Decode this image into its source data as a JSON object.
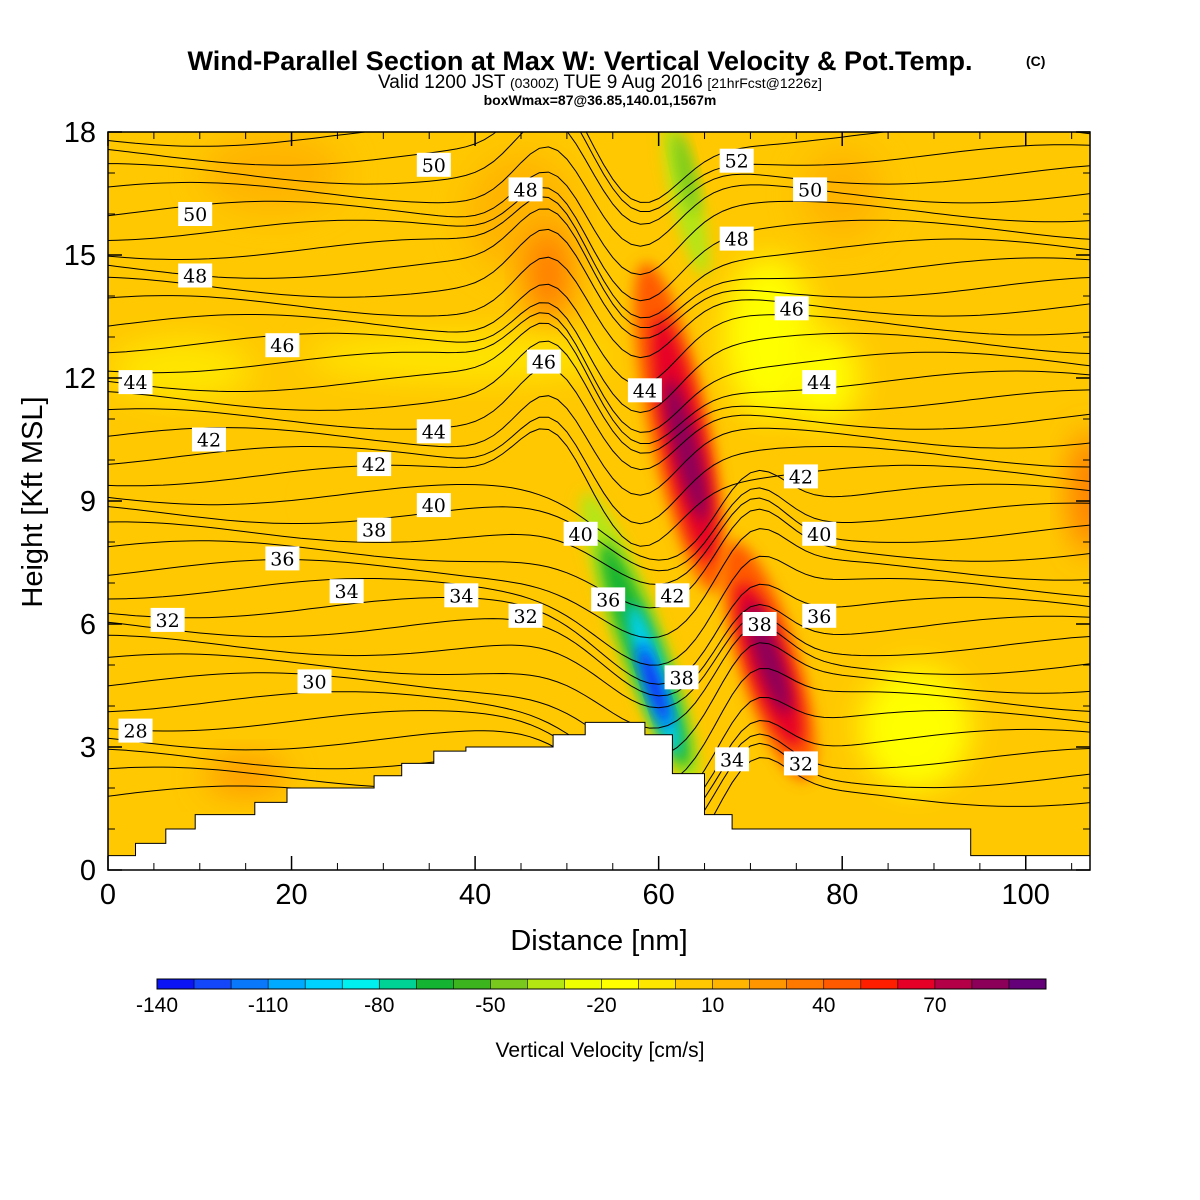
{
  "title": {
    "main": "Wind-Parallel Section at Max W: Vertical Velocity & Pot.Temp.",
    "copyright": "(C)",
    "valid_prefix": "Valid 1200 JST",
    "valid_utc": "(0300Z)",
    "valid_date": "TUE 9 Aug 2016",
    "forecast": "[21hrFcst@1226z]",
    "box_info": "boxWmax=87@36.85,140.01,1567m"
  },
  "chart_data": {
    "type": "contour",
    "xlabel": "Distance [nm]",
    "ylabel": "Height [Kft MSL]",
    "xlim": [
      0,
      107
    ],
    "ylim": [
      0,
      18
    ],
    "x_ticks": [
      "0",
      "20",
      "40",
      "60",
      "80",
      "100"
    ],
    "x_tick_values": [
      0,
      20,
      40,
      60,
      80,
      100
    ],
    "y_ticks": [
      "0",
      "3",
      "6",
      "9",
      "12",
      "15",
      "18"
    ],
    "y_tick_values": [
      0,
      3,
      6,
      9,
      12,
      15,
      18
    ],
    "terrain": [
      [
        0,
        0.35
      ],
      [
        3,
        0.35
      ],
      [
        3,
        0.65
      ],
      [
        6.3,
        0.65
      ],
      [
        6.3,
        1.0
      ],
      [
        9.5,
        1.0
      ],
      [
        9.5,
        1.35
      ],
      [
        16,
        1.35
      ],
      [
        16,
        1.65
      ],
      [
        19.5,
        1.65
      ],
      [
        19.5,
        2.0
      ],
      [
        29,
        2.0
      ],
      [
        29,
        2.3
      ],
      [
        32,
        2.3
      ],
      [
        32,
        2.6
      ],
      [
        35.5,
        2.6
      ],
      [
        35.5,
        2.9
      ],
      [
        39,
        2.9
      ],
      [
        39,
        3.0
      ],
      [
        48.5,
        3.0
      ],
      [
        48.5,
        3.3
      ],
      [
        52,
        3.3
      ],
      [
        52,
        3.6
      ],
      [
        58.5,
        3.6
      ],
      [
        58.5,
        3.3
      ],
      [
        61.5,
        3.3
      ],
      [
        61.5,
        2.35
      ],
      [
        65,
        2.35
      ],
      [
        65,
        1.35
      ],
      [
        68,
        1.35
      ],
      [
        68,
        1.0
      ],
      [
        94,
        1.0
      ],
      [
        94,
        0.35
      ],
      [
        107,
        0.35
      ]
    ],
    "colorbar": {
      "title": "Vertical Velocity [cm/s]",
      "tick_labels": [
        "-140",
        "-110",
        "-80",
        "-50",
        "-20",
        "10",
        "40",
        "70"
      ],
      "tick_values": [
        -140,
        -110,
        -80,
        -50,
        -20,
        10,
        40,
        70
      ],
      "levels": [
        -140,
        -130,
        -120,
        -110,
        -100,
        -90,
        -80,
        -70,
        -60,
        -50,
        -40,
        -30,
        -20,
        -10,
        0,
        10,
        20,
        30,
        40,
        50,
        60,
        70,
        80,
        90
      ],
      "colors": [
        "#0a14f5",
        "#1446fa",
        "#0a78fa",
        "#00aaff",
        "#00d2ff",
        "#00f0f0",
        "#00d296",
        "#14b432",
        "#3cb41e",
        "#78c81e",
        "#b4e614",
        "#f0ff00",
        "#ffff00",
        "#ffe600",
        "#ffc800",
        "#ffb400",
        "#ff9600",
        "#ff7800",
        "#ff5a00",
        "#ff1e00",
        "#e60028",
        "#b40046",
        "#8c005a",
        "#640078"
      ]
    },
    "vv_features": [
      {
        "x": 64,
        "y": 10.5,
        "value": 85
      },
      {
        "x": 72,
        "y": 5.0,
        "value": 80
      },
      {
        "x": 74,
        "y": 3.0,
        "value": 60
      },
      {
        "x": 59,
        "y": 5.0,
        "value": -140
      },
      {
        "x": 62,
        "y": 3.5,
        "value": -110
      },
      {
        "x": 63,
        "y": 16.5,
        "value": -40
      },
      {
        "x": 72,
        "y": 12.5,
        "value": -25
      }
    ],
    "contour_labels": [
      {
        "text": "50",
        "x": 35.5,
        "y": 17.2
      },
      {
        "text": "52",
        "x": 68.5,
        "y": 17.3
      },
      {
        "text": "48",
        "x": 45.5,
        "y": 16.6
      },
      {
        "text": "50",
        "x": 76.5,
        "y": 16.6
      },
      {
        "text": "50",
        "x": 9.5,
        "y": 16.0
      },
      {
        "text": "48",
        "x": 68.5,
        "y": 15.4
      },
      {
        "text": "48",
        "x": 9.5,
        "y": 14.5
      },
      {
        "text": "46",
        "x": 74.5,
        "y": 13.7
      },
      {
        "text": "46",
        "x": 19.0,
        "y": 12.8
      },
      {
        "text": "46",
        "x": 47.5,
        "y": 12.4
      },
      {
        "text": "44",
        "x": 3.0,
        "y": 11.9
      },
      {
        "text": "44",
        "x": 58.5,
        "y": 11.7
      },
      {
        "text": "44",
        "x": 77.5,
        "y": 11.9
      },
      {
        "text": "44",
        "x": 35.5,
        "y": 10.7
      },
      {
        "text": "42",
        "x": 11.0,
        "y": 10.5
      },
      {
        "text": "42",
        "x": 29.0,
        "y": 9.9
      },
      {
        "text": "42",
        "x": 75.5,
        "y": 9.6
      },
      {
        "text": "40",
        "x": 35.5,
        "y": 8.9
      },
      {
        "text": "40",
        "x": 51.5,
        "y": 8.2
      },
      {
        "text": "40",
        "x": 77.5,
        "y": 8.2
      },
      {
        "text": "38",
        "x": 29.0,
        "y": 8.3
      },
      {
        "text": "36",
        "x": 19.0,
        "y": 7.6
      },
      {
        "text": "34",
        "x": 26.0,
        "y": 6.8
      },
      {
        "text": "34",
        "x": 38.5,
        "y": 6.7
      },
      {
        "text": "36",
        "x": 54.5,
        "y": 6.6
      },
      {
        "text": "42",
        "x": 61.5,
        "y": 6.7
      },
      {
        "text": "36",
        "x": 77.5,
        "y": 6.2
      },
      {
        "text": "38",
        "x": 71.0,
        "y": 6.0
      },
      {
        "text": "32",
        "x": 6.5,
        "y": 6.1
      },
      {
        "text": "32",
        "x": 45.5,
        "y": 6.2
      },
      {
        "text": "38",
        "x": 62.5,
        "y": 4.7
      },
      {
        "text": "30",
        "x": 22.5,
        "y": 4.6
      },
      {
        "text": "34",
        "x": 68.0,
        "y": 2.7
      },
      {
        "text": "32",
        "x": 75.5,
        "y": 2.6
      },
      {
        "text": "28",
        "x": 3.0,
        "y": 3.4
      }
    ]
  }
}
